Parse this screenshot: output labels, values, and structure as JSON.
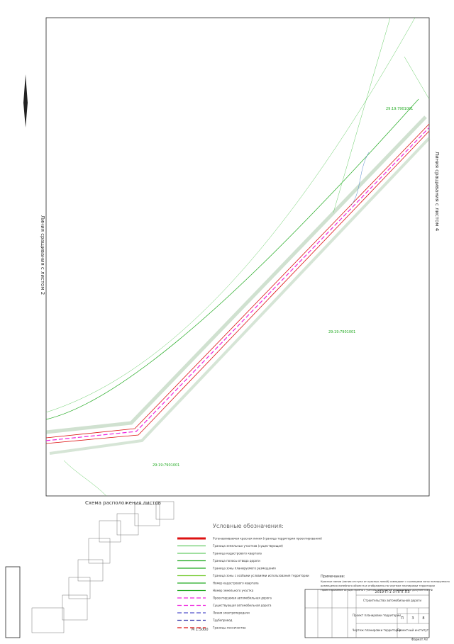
{
  "sheet": {
    "match_line_left": "Линия сращивания с листом 2",
    "match_line_right": "Линия сращивания с листом 4",
    "cadastral_blocks": [
      "29:19:7901001",
      "29:19:7901001",
      "29:19:7901001"
    ],
    "layout_scheme_title": "Схема расположения листов",
    "scale": "М 1:5000"
  },
  "legend": {
    "title": "Условные обозначения:",
    "items": [
      {
        "label": "Устанавливаемая красная линия (граница территории проектирования)",
        "color": "#d11"
      },
      {
        "label": "Граница земельных участков (существующая)",
        "color": "#6c6"
      },
      {
        "label": "Граница кадастрового квартала",
        "color": "#6c6"
      },
      {
        "label": "Граница полосы отвода дороги",
        "color": "#2a2"
      },
      {
        "label": "Граница зоны планируемого размещения",
        "color": "#2a2"
      },
      {
        "label": "Граница зоны с особыми условиями использования территории",
        "color": "#7c3"
      },
      {
        "label": "Номер кадастрового квартала",
        "color": "#2a2"
      },
      {
        "label": "Номер земельного участка",
        "color": "#2a2"
      },
      {
        "label": "Проектируемая автомобильная дорога",
        "color": "#e2d"
      },
      {
        "label": "Существующая автомобильная дорога",
        "color": "#e2d"
      },
      {
        "label": "Линия электропередачи",
        "color": "#55c"
      },
      {
        "label": "Трубопровод",
        "color": "#33a"
      },
      {
        "label": "Границы лесничества",
        "color": "#d11"
      }
    ]
  },
  "notes": {
    "title": "Примечание:",
    "lines": [
      "Красные линии (линии отступа от красных линий) совпадают с границами зоны планируемого",
      "размещения линейного объекта и отображены на чертеже планировки территории",
      "Проектирование осуществлено с учетом требований нормативных документов РФ"
    ]
  },
  "title_block": {
    "code": "2019-П-1-3-ППТ.ПЗ",
    "object": "Строительство автомобильной дороги",
    "sheet_title": "Проект планировки территории",
    "drawing_title": "Чертеж планировки территории",
    "company": "Проектный институт",
    "stage": "П",
    "sheet": "3",
    "sheets": "8",
    "format": "Формат А3"
  }
}
